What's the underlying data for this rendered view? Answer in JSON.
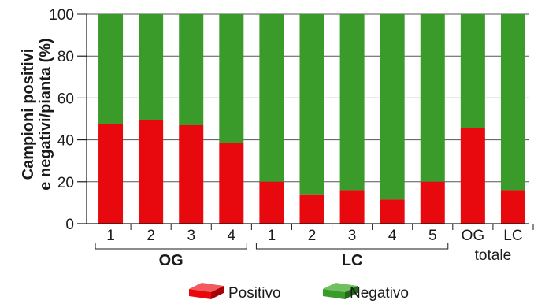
{
  "chart_data": {
    "type": "bar",
    "stacked": true,
    "categories": [
      "1",
      "2",
      "3",
      "4",
      "1",
      "2",
      "3",
      "4",
      "5",
      "OG",
      "LC"
    ],
    "series": [
      {
        "name": "Positivo",
        "values": [
          47.5,
          49.5,
          47,
          38.5,
          20,
          14,
          16,
          11.5,
          20,
          45.5,
          16
        ]
      },
      {
        "name": "Negativo",
        "values": [
          52.5,
          50.5,
          53,
          61.5,
          80,
          86,
          84,
          88.5,
          80,
          54.5,
          84
        ]
      }
    ],
    "groups": [
      {
        "label": "OG",
        "members": [
          0,
          1,
          2,
          3
        ]
      },
      {
        "label": "LC",
        "members": [
          4,
          5,
          6,
          7,
          8
        ]
      }
    ],
    "total_label": "totale",
    "ylabel_line1": "Campioni positivi",
    "ylabel_line2": "e negativi/pianta (%)",
    "ylim": [
      0,
      100
    ],
    "yticks": [
      "0",
      "20",
      "40",
      "60",
      "80",
      "100"
    ],
    "grid": true,
    "legend_position": "bottom-center",
    "colors": {
      "Positivo": "#e8090f",
      "Negativo": "#3a9a2a"
    }
  }
}
